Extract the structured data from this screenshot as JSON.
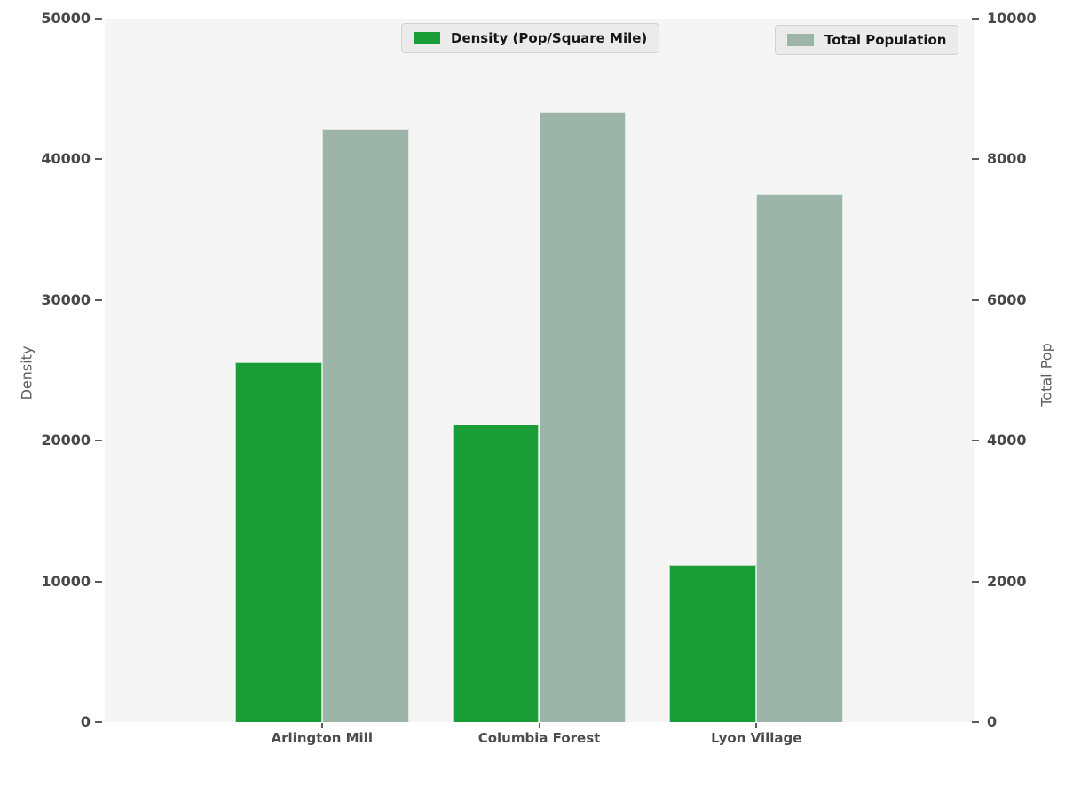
{
  "chart_data": {
    "type": "bar",
    "title": "",
    "grid": false,
    "categories": [
      "Arlington Mill",
      "Columbia Forest",
      "Lyon Village"
    ],
    "series": [
      {
        "name": "Density (Pop/Square Mile)",
        "key": "density",
        "yaxis": "left",
        "color": "#1a9c37",
        "values": [
          25600,
          21150,
          11150
        ]
      },
      {
        "name": "Total Population",
        "key": "population",
        "yaxis": "right",
        "color": "#9db4a8",
        "values": [
          8430,
          8670,
          7510
        ]
      }
    ],
    "left_axis": {
      "label": "Density",
      "min": 0,
      "max": 50000,
      "ticks": [
        0,
        10000,
        20000,
        30000,
        40000,
        50000
      ]
    },
    "right_axis": {
      "label": "Total Pop",
      "min": 0,
      "max": 10000,
      "ticks": [
        0,
        2000,
        4000,
        6000,
        8000,
        10000
      ]
    },
    "legend": {
      "position": "top",
      "entries": [
        "Density (Pop/Square Mile)",
        "Total Population"
      ]
    },
    "colors": {
      "plot_background": "#f5f5f5",
      "figure_background": "#ffffff",
      "legend_background": "#ebebeb"
    }
  }
}
